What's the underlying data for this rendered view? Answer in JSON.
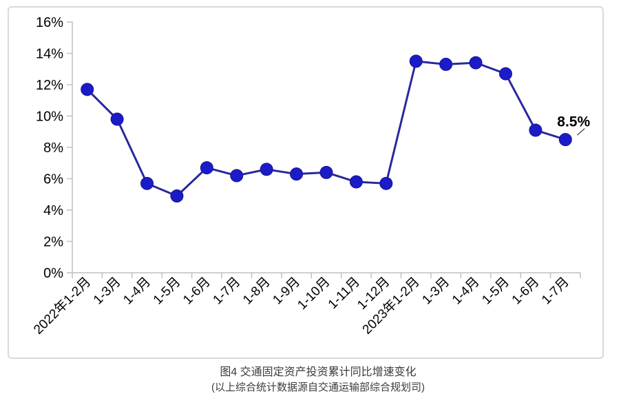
{
  "figure": {
    "caption_line1": "图4  交通固定资产投资累计同比增速变化",
    "caption_line2": "(以上综合统计数据源自交通运输部综合规划司)"
  },
  "colors": {
    "line": "#28289C",
    "marker_fill": "#1B1BC8",
    "marker_stroke": "#16168F",
    "axis": "#BFBFBF",
    "panel_border": "#D9D9D9",
    "annotation_text": "#000000",
    "leader_line": "#404040",
    "caption_text": "#3B3B3B"
  },
  "chart_data": {
    "type": "line",
    "title": "图4 交通固定资产投资累计同比增速变化",
    "xlabel": "",
    "ylabel": "",
    "categories": [
      "2022年1-2月",
      "1-3月",
      "1-4月",
      "1-5月",
      "1-6月",
      "1-7月",
      "1-8月",
      "1-9月",
      "1-10月",
      "1-11月",
      "1-12月",
      "2023年1-2月",
      "1-3月",
      "1-4月",
      "1-5月",
      "1-6月",
      "1-7月"
    ],
    "series": [
      {
        "name": "交通固定资产投资累计同比增速",
        "values": [
          11.7,
          9.8,
          5.7,
          4.9,
          6.7,
          6.2,
          6.6,
          6.3,
          6.4,
          5.8,
          5.7,
          13.5,
          13.3,
          13.4,
          12.7,
          9.1,
          8.5
        ]
      }
    ],
    "ylim": [
      0,
      16
    ],
    "y_tick_step": 2,
    "y_tick_labels": [
      "0%",
      "2%",
      "4%",
      "6%",
      "8%",
      "10%",
      "12%",
      "14%",
      "16%"
    ],
    "grid": false,
    "legend_position": "none",
    "annotation": {
      "text": "8.5%",
      "target_index": 16,
      "value": 8.5
    }
  }
}
